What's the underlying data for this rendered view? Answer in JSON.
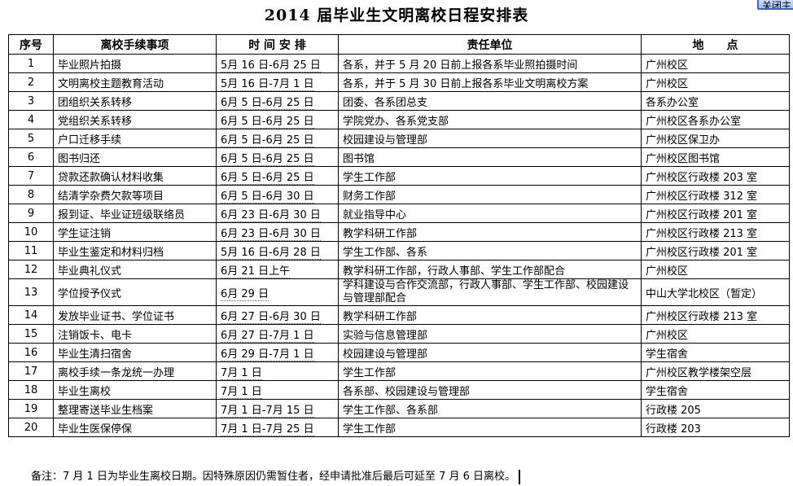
{
  "close_button": "关闭主",
  "title": "2014 届毕业生文明离校日程安排表",
  "headers": [
    "序号",
    "离校手续事项",
    "时 间 安 排",
    "责任单位",
    "地　　点"
  ],
  "rows": [
    [
      "1",
      "毕业照片拍摄",
      "5月 16 日-6月 25 日",
      "各系，并于 5 月 20 日前上报各系毕业照拍摄时间",
      "广州校区"
    ],
    [
      "2",
      "文明离校主题教育活动",
      "5月 16 日-7月 1 日",
      "各系，并于 5 月 30 日前上报各系毕业文明离校方案",
      "广州校区"
    ],
    [
      "3",
      "团组织关系转移",
      "6月 5 日-6月 25 日",
      "团委、各系团总支",
      "各系办公室"
    ],
    [
      "4",
      "党组织关系转移",
      "6月 5 日-6月 25 日",
      "学院党办、各系党支部",
      "广州校区各系办公室"
    ],
    [
      "5",
      "户口迁移手续",
      "6月 5 日-6月 25 日",
      "校园建设与管理部",
      "广州校区保卫办"
    ],
    [
      "6",
      "图书归还",
      "6月 5 日-6月 25 日",
      "图书馆",
      "广州校区图书馆"
    ],
    [
      "7",
      "贷款还款确认材料收集",
      "6月 5 日-6月 25 日",
      "学生工作部",
      "广州校区行政楼 203 室"
    ],
    [
      "8",
      "结清学杂费欠款等项目",
      "6月 5 日-6月 30 日",
      "财务工作部",
      "广州校区行政楼 312 室"
    ],
    [
      "9",
      "报到证、毕业证班级联络员",
      "6月 23 日-6月 30 日",
      "就业指导中心",
      "广州校区行政楼 201 室"
    ],
    [
      "10",
      "学生证注销",
      "6月 23 日-6月 30 日",
      "教学科研工作部",
      "广州校区行政楼 213 室"
    ],
    [
      "11",
      "毕业生鉴定和材料归档",
      "5月 16 日-6月 28 日",
      "学生工作部、各系",
      "广州校区行政楼 201 室"
    ],
    [
      "12",
      "毕业典礼仪式",
      "6月 21 日上午",
      "教学科研工作部，行政人事部、学生工作部配合",
      "广州校区"
    ],
    [
      "13",
      "学位授予仪式",
      "6月 29 日",
      "学科建设与合作交流部，行政人事部、学生工作部、校园建设与管理部配合",
      "中山大学北校区（暂定）"
    ],
    [
      "14",
      "发放毕业证书、学位证书",
      "6月 27 日-6月 30 日",
      "教学科研工作部",
      "广州校区行政楼 213 室"
    ],
    [
      "15",
      "注销饭卡、电卡",
      "6月 27 日-7月 1 日",
      "实验与信息管理部",
      "广州校区"
    ],
    [
      "16",
      "毕业生清扫宿舍",
      "6月 29 日-7月 1 日",
      "校园建设与管理部",
      "学生宿舍"
    ],
    [
      "17",
      "离校手续一条龙统一办理",
      "7月 1 日",
      "学生工作部",
      "广州校区教学楼架空层"
    ],
    [
      "18",
      "毕业生离校",
      "7月 1 日",
      "各系部、校园建设与管理部",
      "学生宿舍"
    ],
    [
      "19",
      "整理寄送毕业生档案",
      "7月 1 日-7月 15 日",
      "学生工作部、各系部",
      "行政楼 205"
    ],
    [
      "20",
      "毕业生医保停保",
      "7月 1 日-7月 25 日",
      "学生工作部",
      "行政楼 203"
    ]
  ],
  "note": "备注：7 月 1 日为毕业生离校日期。因特殊原因仍需暂住者，经申请批准后最后可延至 7 月 6 日离校。"
}
